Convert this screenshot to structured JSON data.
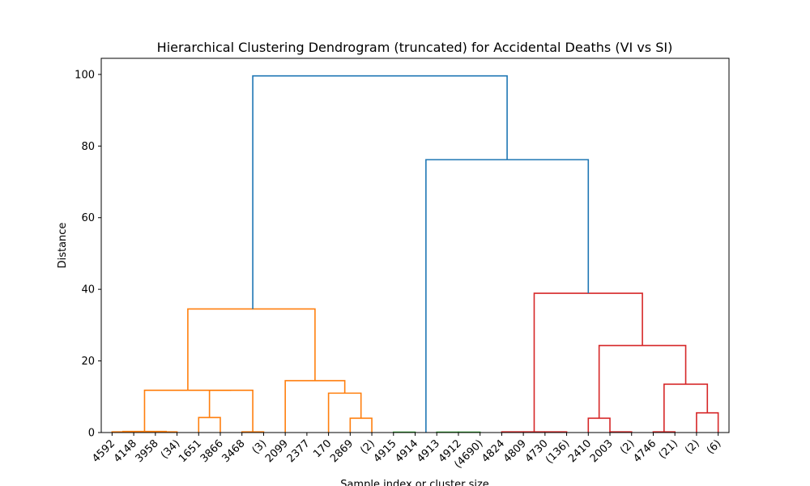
{
  "chart_data": {
    "type": "dendrogram",
    "title": "Hierarchical Clustering Dendrogram (truncated) for Accidental Deaths (VI vs SI)",
    "xlabel": "Sample index or cluster size",
    "ylabel": "Distance",
    "ylim": [
      0,
      104.5
    ],
    "yticks": [
      0,
      20,
      40,
      60,
      80,
      100
    ],
    "leaves": [
      "4592",
      "4148",
      "3958",
      "(34)",
      "1651",
      "3866",
      "3468",
      "(3)",
      "2099",
      "2377",
      "170",
      "2869",
      "(2)",
      "4915",
      "4914",
      "4913",
      "4912",
      "(4690)",
      "4824",
      "4809",
      "4730",
      "(136)",
      "2410",
      "2003",
      "(2)",
      "4746",
      "(21)",
      "(2)",
      "(6)"
    ],
    "colors": {
      "orange": "#ff7f0e",
      "blue": "#1f77b4",
      "green": "#2ca02c",
      "red": "#d62728"
    },
    "links": [
      {
        "a": [
          0,
          0
        ],
        "b": [
          1,
          0
        ],
        "h": 0.2,
        "color": "orange"
      },
      {
        "a": [
          2,
          0
        ],
        "b": [
          3,
          0
        ],
        "h": 0.2,
        "color": "orange"
      },
      {
        "a": [
          0.5,
          0.2
        ],
        "b": [
          2.5,
          0.2
        ],
        "h": 0.3,
        "color": "orange"
      },
      {
        "a": [
          4,
          0
        ],
        "b": [
          5,
          0
        ],
        "h": 4.2,
        "color": "orange"
      },
      {
        "a": [
          6,
          0
        ],
        "b": [
          7,
          0
        ],
        "h": 0.2,
        "color": "orange"
      },
      {
        "a": [
          4.5,
          4.2
        ],
        "b": [
          6.5,
          0.2
        ],
        "h": 11.8,
        "color": "orange"
      },
      {
        "a": [
          1.5,
          0.3
        ],
        "b": [
          5.5,
          11.8
        ],
        "h": 11.8,
        "color": "orange"
      },
      {
        "a": [
          11,
          0
        ],
        "b": [
          12,
          0
        ],
        "h": 4.0,
        "color": "orange"
      },
      {
        "a": [
          10,
          0
        ],
        "b": [
          11.5,
          4.0
        ],
        "h": 11.0,
        "color": "orange"
      },
      {
        "a": [
          8,
          0
        ],
        "b": [
          10.75,
          11.0
        ],
        "h": 14.5,
        "color": "orange"
      },
      {
        "a": [
          3.5,
          11.8
        ],
        "b": [
          9.375,
          14.5
        ],
        "h": 34.5,
        "color": "orange"
      },
      {
        "a": [
          13,
          0
        ],
        "b": [
          14,
          0
        ],
        "h": 0.1,
        "color": "green"
      },
      {
        "a": [
          15,
          0
        ],
        "b": [
          16,
          0
        ],
        "h": 0.1,
        "color": "green"
      },
      {
        "a": [
          16,
          0
        ],
        "b": [
          17,
          0
        ],
        "h": 0.1,
        "color": "green"
      },
      {
        "a": [
          18,
          0
        ],
        "b": [
          19,
          0
        ],
        "h": 0.2,
        "color": "red"
      },
      {
        "a": [
          20,
          0
        ],
        "b": [
          21,
          0
        ],
        "h": 0.2,
        "color": "red"
      },
      {
        "a": [
          19,
          0.2
        ],
        "b": [
          20,
          0.2
        ],
        "h": 0.2,
        "color": "red"
      },
      {
        "a": [
          22,
          0
        ],
        "b": [
          23,
          0
        ],
        "h": 4.0,
        "color": "red"
      },
      {
        "a": [
          23,
          0
        ],
        "b": [
          24,
          0
        ],
        "h": 0.2,
        "color": "red"
      },
      {
        "a": [
          25,
          0
        ],
        "b": [
          26,
          0
        ],
        "h": 0.2,
        "color": "red"
      },
      {
        "a": [
          27,
          0
        ],
        "b": [
          28,
          0
        ],
        "h": 5.5,
        "color": "red"
      },
      {
        "a": [
          25.5,
          0.2
        ],
        "b": [
          27.5,
          5.5
        ],
        "h": 13.5,
        "color": "red"
      },
      {
        "a": [
          22.5,
          4.0
        ],
        "b": [
          26.5,
          13.5
        ],
        "h": 24.3,
        "color": "red"
      },
      {
        "a": [
          19.5,
          0.2
        ],
        "b": [
          24.5,
          24.3
        ],
        "h": 38.9,
        "color": "red"
      },
      {
        "a": [
          14.5,
          0.1
        ],
        "b": [
          22.0,
          38.9
        ],
        "h": 76.2,
        "color": "blue"
      },
      {
        "a": [
          6.5,
          34.5
        ],
        "b": [
          18.25,
          76.2
        ],
        "h": 99.6,
        "color": "blue"
      }
    ]
  }
}
